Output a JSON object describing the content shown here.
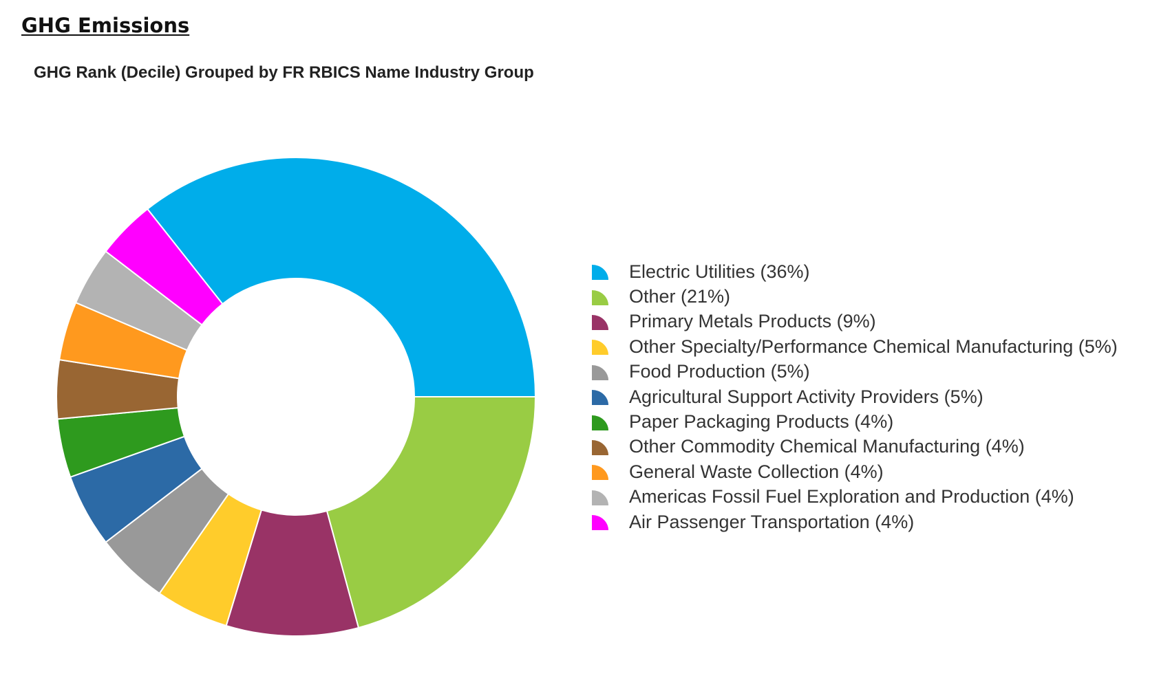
{
  "page": {
    "section_title": "GHG Emissions"
  },
  "chart_data": {
    "type": "pie",
    "donut": true,
    "title": "GHG Rank (Decile) Grouped by FR RBICS Name Industry Group",
    "legend_position": "right",
    "slices": [
      {
        "name": "Electric Utilities",
        "value": 36,
        "label": "Electric Utilities (36%)",
        "color": "#00ADEA"
      },
      {
        "name": "Other",
        "value": 21,
        "label": "Other (21%)",
        "color": "#99CC44"
      },
      {
        "name": "Primary Metals Products",
        "value": 9,
        "label": "Primary Metals Products (9%)",
        "color": "#993366"
      },
      {
        "name": "Other Specialty/Performance Chemical Manufacturing",
        "value": 5,
        "label": "Other Specialty/Performance Chemical Manufacturing (5%)",
        "color": "#FFCC2B"
      },
      {
        "name": "Food Production",
        "value": 5,
        "label": "Food Production (5%)",
        "color": "#999999"
      },
      {
        "name": "Agricultural Support Activity Providers",
        "value": 5,
        "label": "Agricultural Support Activity Providers (5%)",
        "color": "#2C6AA6"
      },
      {
        "name": "Paper Packaging Products",
        "value": 4,
        "label": "Paper Packaging Products (4%)",
        "color": "#2E9A1E"
      },
      {
        "name": "Other Commodity Chemical Manufacturing",
        "value": 4,
        "label": "Other Commodity Chemical Manufacturing (4%)",
        "color": "#996633"
      },
      {
        "name": "General Waste Collection",
        "value": 4,
        "label": "General Waste Collection (4%)",
        "color": "#FF991E"
      },
      {
        "name": "Americas Fossil Fuel Exploration and Production",
        "value": 4,
        "label": "Americas Fossil Fuel Exploration and Production (4%)",
        "color": "#B3B3B3"
      },
      {
        "name": "Air Passenger Transportation",
        "value": 4,
        "label": "Air Passenger Transportation (4%)",
        "color": "#FF00FF"
      }
    ]
  }
}
